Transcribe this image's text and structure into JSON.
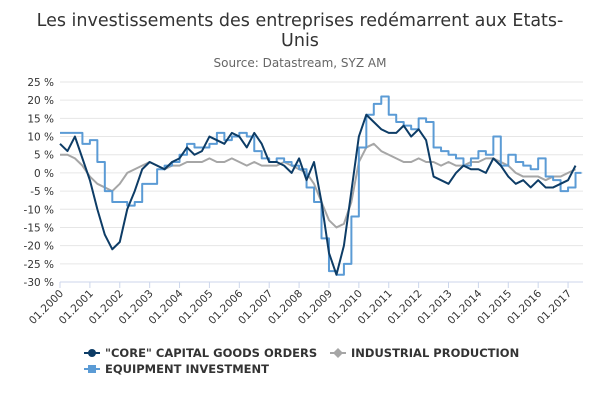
{
  "chart_data": {
    "type": "line",
    "title": "Les investissements des entreprises redémarrent aux Etats-Unis",
    "title_lines": [
      "Les investissements des entreprises redémarrent aux Etats-",
      "Unis"
    ],
    "subtitle": "Source: Datastream, SYZ AM",
    "ylim": [
      -30,
      25
    ],
    "y_ticks": [
      25,
      20,
      15,
      10,
      5,
      0,
      -5,
      -10,
      -15,
      -20,
      -25,
      -30
    ],
    "y_tick_labels": [
      "25 %",
      "20 %",
      "15 %",
      "10 %",
      "5 %",
      "0 %",
      "-5 %",
      "-10 %",
      "-15 %",
      "-20 %",
      "-25 %",
      "-30 %"
    ],
    "xlim": [
      2000.0,
      2017.5
    ],
    "x_ticks": [
      2000,
      2001,
      2002,
      2003,
      2004,
      2005,
      2006,
      2007,
      2008,
      2009,
      2010,
      2011,
      2012,
      2013,
      2014,
      2015,
      2016,
      2017
    ],
    "x_tick_labels": [
      "01.2000",
      "01.2001",
      "01.2002",
      "01.2003",
      "01.2004",
      "01.2005",
      "01.2006",
      "01.2007",
      "01.2008",
      "01.2009",
      "01.2010",
      "01.2011",
      "01.2012",
      "01.2013",
      "01.2014",
      "01.2015",
      "01.2016",
      "01.2017"
    ],
    "grid": "horizontal",
    "legend_position": "bottom",
    "series": [
      {
        "name": "\"CORE\" CAPITAL GOODS ORDERS",
        "color": "#0d3c66",
        "marker": "circle",
        "x": [
          2000.0,
          2000.25,
          2000.5,
          2000.75,
          2001.0,
          2001.25,
          2001.5,
          2001.75,
          2002.0,
          2002.25,
          2002.5,
          2002.75,
          2003.0,
          2003.25,
          2003.5,
          2003.75,
          2004.0,
          2004.25,
          2004.5,
          2004.75,
          2005.0,
          2005.25,
          2005.5,
          2005.75,
          2006.0,
          2006.25,
          2006.5,
          2006.75,
          2007.0,
          2007.25,
          2007.5,
          2007.75,
          2008.0,
          2008.25,
          2008.5,
          2008.75,
          2009.0,
          2009.25,
          2009.5,
          2009.75,
          2010.0,
          2010.25,
          2010.5,
          2010.75,
          2011.0,
          2011.25,
          2011.5,
          2011.75,
          2012.0,
          2012.25,
          2012.5,
          2012.75,
          2013.0,
          2013.25,
          2013.5,
          2013.75,
          2014.0,
          2014.25,
          2014.5,
          2014.75,
          2015.0,
          2015.25,
          2015.5,
          2015.75,
          2016.0,
          2016.25,
          2016.5,
          2016.75,
          2017.0,
          2017.25
        ],
        "values": [
          8,
          6,
          10,
          4,
          -2,
          -10,
          -17,
          -21,
          -19,
          -10,
          -5,
          1,
          3,
          2,
          1,
          3,
          4,
          7,
          5,
          6,
          10,
          9,
          8,
          11,
          10,
          7,
          11,
          8,
          3,
          3,
          2,
          0,
          4,
          -2,
          3,
          -8,
          -22,
          -28,
          -20,
          -5,
          10,
          16,
          14,
          12,
          11,
          11,
          13,
          10,
          12,
          9,
          -1,
          -2,
          -3,
          0,
          2,
          1,
          1,
          0,
          4,
          2,
          -1,
          -3,
          -2,
          -4,
          -2,
          -4,
          -4,
          -3,
          -2,
          2
        ]
      },
      {
        "name": "EQUIPMENT INVESTMENT",
        "color": "#5b9bd5",
        "marker": "square",
        "x": [
          2000.0,
          2000.25,
          2000.5,
          2000.75,
          2001.0,
          2001.25,
          2001.5,
          2001.75,
          2002.0,
          2002.25,
          2002.5,
          2002.75,
          2003.0,
          2003.25,
          2003.5,
          2003.75,
          2004.0,
          2004.25,
          2004.5,
          2004.75,
          2005.0,
          2005.25,
          2005.5,
          2005.75,
          2006.0,
          2006.25,
          2006.5,
          2006.75,
          2007.0,
          2007.25,
          2007.5,
          2007.75,
          2008.0,
          2008.25,
          2008.5,
          2008.75,
          2009.0,
          2009.25,
          2009.5,
          2009.75,
          2010.0,
          2010.25,
          2010.5,
          2010.75,
          2011.0,
          2011.25,
          2011.5,
          2011.75,
          2012.0,
          2012.25,
          2012.5,
          2012.75,
          2013.0,
          2013.25,
          2013.5,
          2013.75,
          2014.0,
          2014.25,
          2014.5,
          2014.75,
          2015.0,
          2015.25,
          2015.5,
          2015.75,
          2016.0,
          2016.25,
          2016.5,
          2016.75,
          2017.0,
          2017.25
        ],
        "values": [
          11,
          11,
          11,
          8,
          9,
          3,
          -5,
          -8,
          -8,
          -9,
          -8,
          -3,
          -3,
          1,
          2,
          3,
          5,
          8,
          7,
          7,
          8,
          11,
          9,
          10,
          11,
          10,
          6,
          4,
          3,
          4,
          3,
          2,
          1,
          -4,
          -8,
          -18,
          -27,
          -28,
          -25,
          -12,
          7,
          16,
          19,
          21,
          16,
          14,
          13,
          12,
          15,
          14,
          7,
          6,
          5,
          4,
          2,
          4,
          6,
          5,
          10,
          2,
          5,
          3,
          2,
          1,
          4,
          -1,
          -2,
          -5,
          -4,
          0
        ]
      },
      {
        "name": "INDUSTRIAL PRODUCTION",
        "color": "#a6a6a6",
        "marker": "diamond",
        "x": [
          2000.0,
          2000.25,
          2000.5,
          2000.75,
          2001.0,
          2001.25,
          2001.5,
          2001.75,
          2002.0,
          2002.25,
          2002.5,
          2002.75,
          2003.0,
          2003.25,
          2003.5,
          2003.75,
          2004.0,
          2004.25,
          2004.5,
          2004.75,
          2005.0,
          2005.25,
          2005.5,
          2005.75,
          2006.0,
          2006.25,
          2006.5,
          2006.75,
          2007.0,
          2007.25,
          2007.5,
          2007.75,
          2008.0,
          2008.25,
          2008.5,
          2008.75,
          2009.0,
          2009.25,
          2009.5,
          2009.75,
          2010.0,
          2010.25,
          2010.5,
          2010.75,
          2011.0,
          2011.25,
          2011.5,
          2011.75,
          2012.0,
          2012.25,
          2012.5,
          2012.75,
          2013.0,
          2013.25,
          2013.5,
          2013.75,
          2014.0,
          2014.25,
          2014.5,
          2014.75,
          2015.0,
          2015.25,
          2015.5,
          2015.75,
          2016.0,
          2016.25,
          2016.5,
          2016.75,
          2017.0,
          2017.25
        ],
        "values": [
          5,
          5,
          4,
          2,
          -1,
          -3,
          -4,
          -5,
          -3,
          0,
          1,
          2,
          3,
          2,
          1,
          2,
          2,
          3,
          3,
          3,
          4,
          3,
          3,
          4,
          3,
          2,
          3,
          2,
          2,
          2,
          3,
          2,
          1,
          0,
          -3,
          -8,
          -13,
          -15,
          -14,
          -8,
          3,
          7,
          8,
          6,
          5,
          4,
          3,
          3,
          4,
          3,
          3,
          2,
          3,
          2,
          2,
          3,
          3,
          4,
          4,
          3,
          2,
          0,
          -1,
          -1,
          -1,
          -2,
          -1,
          -1,
          0,
          1
        ]
      }
    ]
  }
}
